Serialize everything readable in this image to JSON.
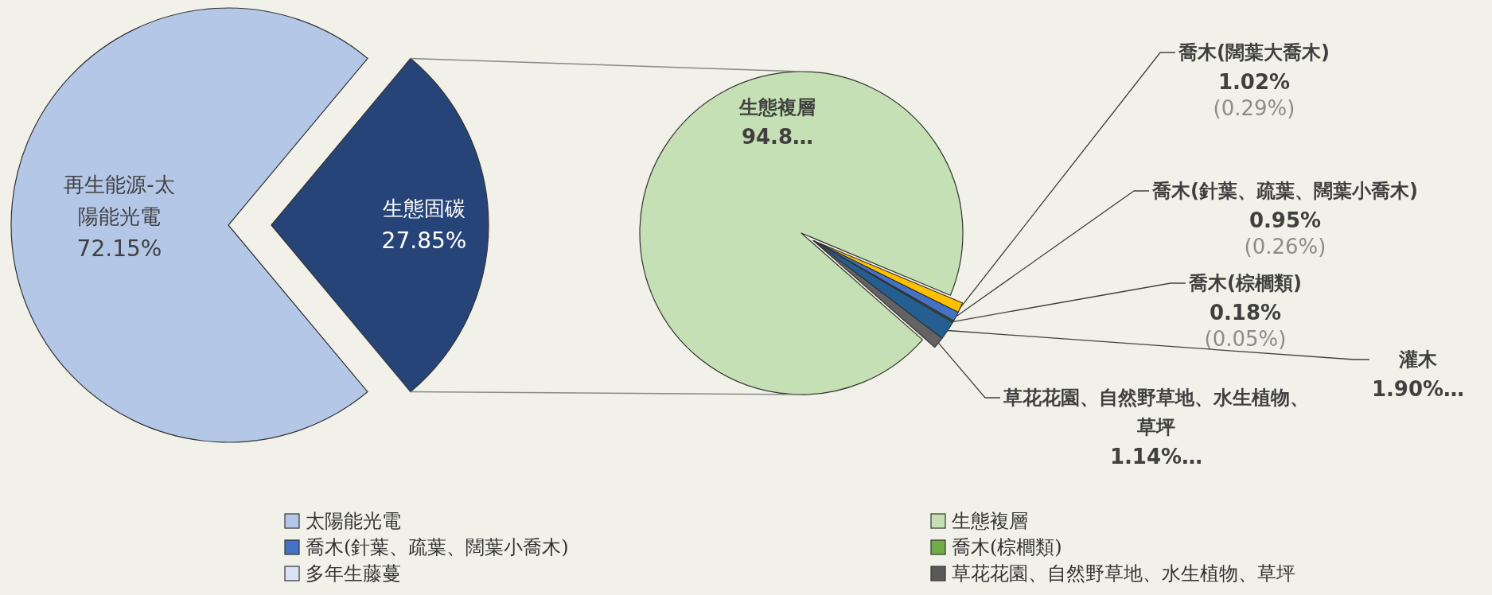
{
  "chart_data": [
    {
      "type": "pie",
      "categories": [
        "再生能源-太陽能光電",
        "生態固碳"
      ],
      "values": [
        72.15,
        27.85
      ],
      "colors": [
        "#b4c7e7",
        "#264478"
      ],
      "value_labels": [
        "72.15%",
        "27.85%"
      ]
    },
    {
      "type": "pie",
      "categories": [
        "生態複層",
        "喬木(闊葉大喬木)",
        "喬木(針葉、疏葉、闊葉小喬木)",
        "喬木(棕櫚類)",
        "灌木",
        "草花花園、自然野草地、水生植物、草坪"
      ],
      "values": [
        94.81,
        1.02,
        0.95,
        0.18,
        1.9,
        1.14
      ],
      "colors": [
        "#c5e0b4",
        "#ffc000",
        "#4472c4",
        "#375623",
        "#255e91",
        "#636363"
      ],
      "value_labels": [
        "94.8…",
        "1.02%",
        "0.95%",
        "0.18%",
        "1.90%…",
        "1.14%…"
      ],
      "annotations": [
        {
          "text": "(0.29%)",
          "x": "喬木(闊葉大喬木)"
        },
        {
          "text": "(0.26%)",
          "x": "喬木(針葉、疏葉、闊葉小喬木)"
        },
        {
          "text": "(0.05%)",
          "x": "喬木(棕櫚類)"
        }
      ]
    },
    {
      "type": "other",
      "categories": [
        "太陽能光電",
        "生態複層",
        "喬木(針葉、疏葉、闊葉小喬木)",
        "喬木(棕櫚類)",
        "多年生藤蔓",
        "草花花園、自然野草地、水生植物、草坪"
      ],
      "colors": [
        "#b4c7e7",
        "#c5e0b4",
        "#4472c4",
        "#70ad47",
        "#dae3f3",
        "#595959"
      ]
    }
  ]
}
